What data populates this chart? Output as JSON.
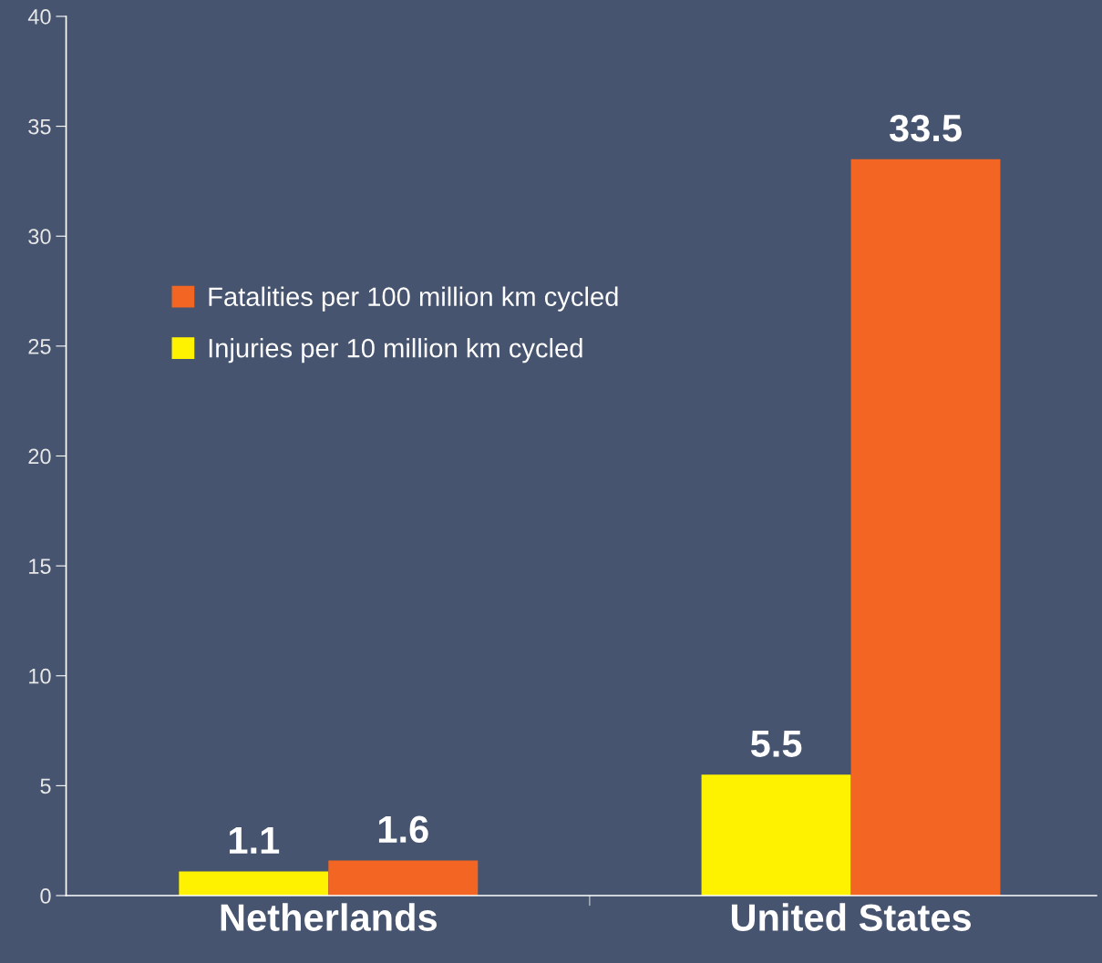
{
  "chart_data": {
    "type": "bar",
    "categories": [
      "Netherlands",
      "United States"
    ],
    "series": [
      {
        "name": "Injuries per 10 million km cycled",
        "color": "#fff200",
        "values": [
          1.1,
          5.5
        ]
      },
      {
        "name": "Fatalities per 100 million km cycled",
        "color": "#f26522",
        "values": [
          1.6,
          33.5
        ]
      }
    ],
    "ylim": [
      0,
      40
    ],
    "yticks": [
      0,
      5,
      10,
      15,
      20,
      25,
      30,
      35,
      40
    ],
    "data_labels": true,
    "legend": "top left",
    "grid": false
  }
}
